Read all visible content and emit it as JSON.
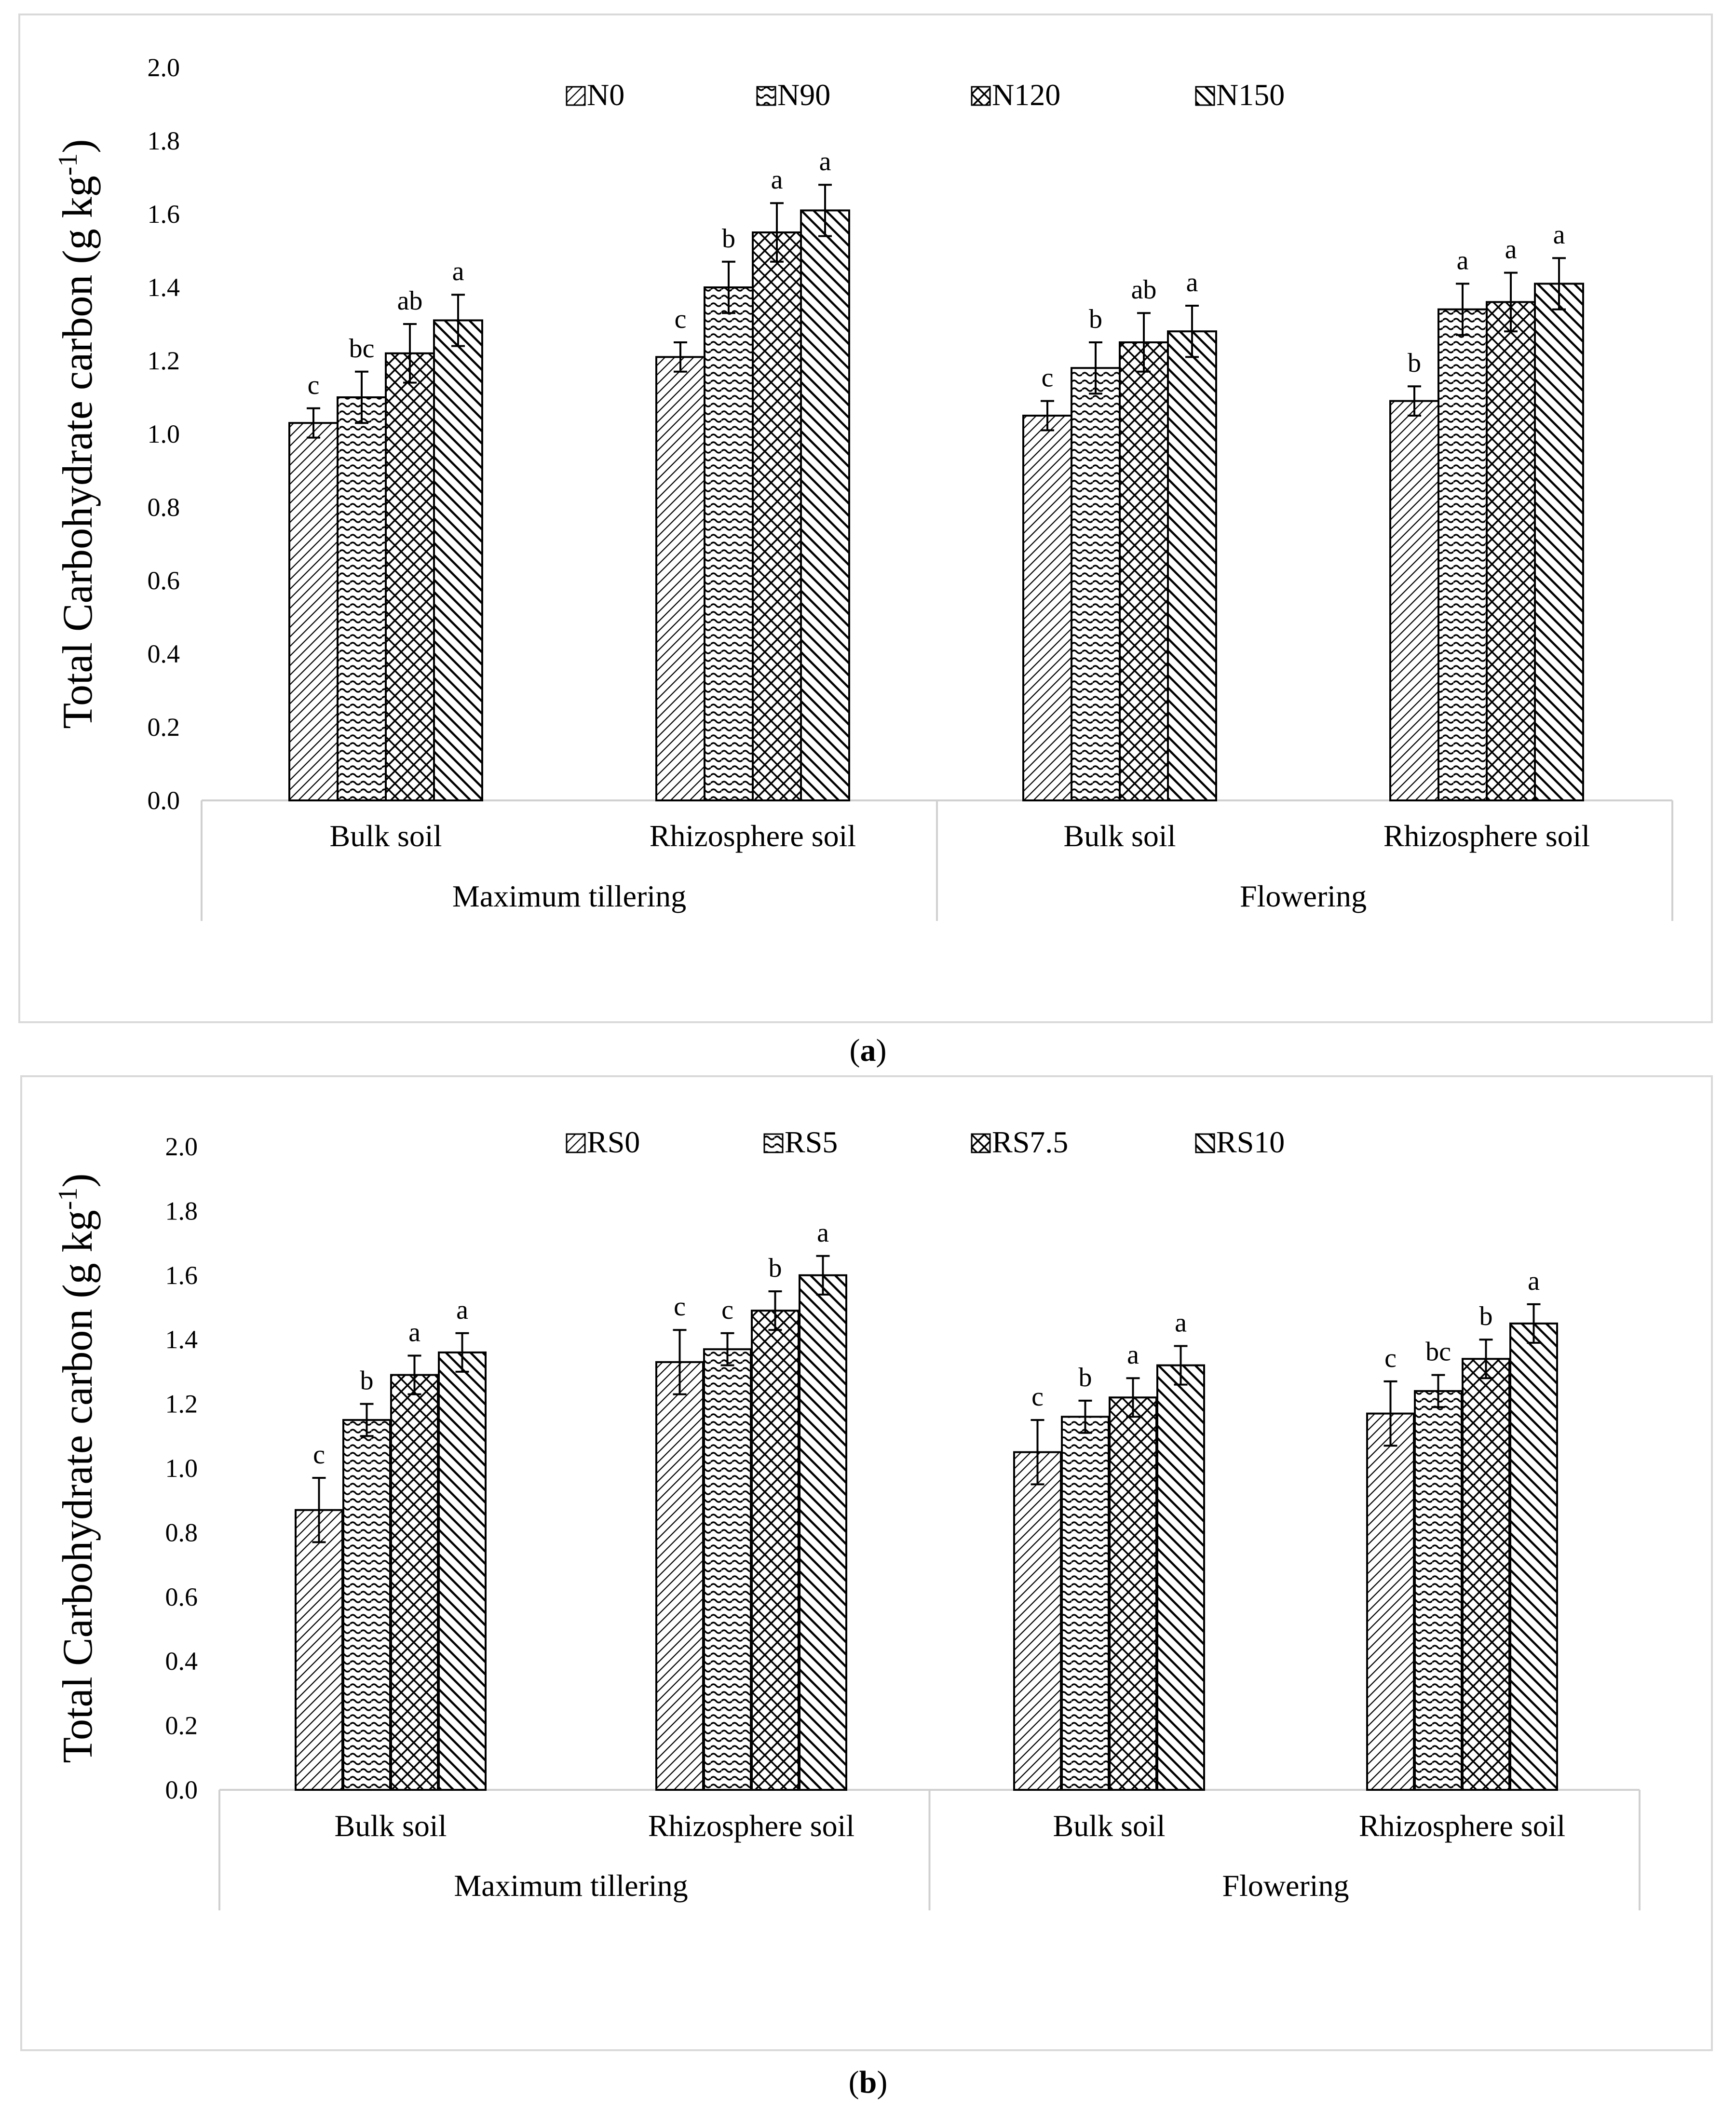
{
  "chart_data": [
    {
      "type": "bar",
      "panel_label": "a",
      "ylabel": "Total Carbohydrate carbon (g kg-1)",
      "ylabel_main": "Total Carbohydrate carbon (g kg",
      "ylabel_sup": "-1",
      "ylabel_end": ")",
      "ylim": [
        0,
        2.0
      ],
      "yticks": [
        "0.0",
        "0.2",
        "0.4",
        "0.6",
        "0.8",
        "1.0",
        "1.2",
        "1.4",
        "1.6",
        "1.8",
        "2.0"
      ],
      "categories": [
        "Bulk soil",
        "Rhizosphere soil",
        "Bulk soil",
        "Rhizosphere soil"
      ],
      "groups": [
        {
          "label": "Maximum tillering",
          "span": 2
        },
        {
          "label": "Flowering",
          "span": 2
        }
      ],
      "legend_position": "top",
      "grid": false,
      "series": [
        {
          "name": "N0",
          "pattern": "diag-thin",
          "values": [
            1.03,
            1.21,
            1.05,
            1.09
          ],
          "errors": [
            0.04,
            0.04,
            0.04,
            0.04
          ],
          "letters": [
            "c",
            "c",
            "c",
            "b"
          ]
        },
        {
          "name": "N90",
          "pattern": "wave",
          "values": [
            1.1,
            1.4,
            1.18,
            1.34
          ],
          "errors": [
            0.07,
            0.07,
            0.07,
            0.07
          ],
          "letters": [
            "bc",
            "b",
            "b",
            "a"
          ]
        },
        {
          "name": "N120",
          "pattern": "crosshatch",
          "values": [
            1.22,
            1.55,
            1.25,
            1.36
          ],
          "errors": [
            0.08,
            0.08,
            0.08,
            0.08
          ],
          "letters": [
            "ab",
            "a",
            "ab",
            "a"
          ]
        },
        {
          "name": "N150",
          "pattern": "diag-thick",
          "values": [
            1.31,
            1.61,
            1.28,
            1.41
          ],
          "errors": [
            0.07,
            0.07,
            0.07,
            0.07
          ],
          "letters": [
            "a",
            "a",
            "a",
            "a"
          ]
        }
      ]
    },
    {
      "type": "bar",
      "panel_label": "b",
      "ylabel": "Total Carbohydrate carbon (g kg-1)",
      "ylabel_main": "Total Carbohydrate carbon (g kg",
      "ylabel_sup": "-1",
      "ylabel_end": ")",
      "ylim": [
        0,
        2.0
      ],
      "yticks": [
        "0.0",
        "0.2",
        "0.4",
        "0.6",
        "0.8",
        "1.0",
        "1.2",
        "1.4",
        "1.6",
        "1.8",
        "2.0"
      ],
      "categories": [
        "Bulk soil",
        "Rhizosphere soil",
        "Bulk soil",
        "Rhizosphere soil"
      ],
      "groups": [
        {
          "label": "Maximum tillering",
          "span": 2
        },
        {
          "label": "Flowering",
          "span": 2
        }
      ],
      "legend_position": "top",
      "grid": false,
      "series": [
        {
          "name": "RS0",
          "pattern": "diag-thin",
          "values": [
            0.87,
            1.33,
            1.05,
            1.17
          ],
          "errors": [
            0.1,
            0.1,
            0.1,
            0.1
          ],
          "letters": [
            "c",
            "c",
            "c",
            "c"
          ]
        },
        {
          "name": "RS5",
          "pattern": "wave",
          "values": [
            1.15,
            1.37,
            1.16,
            1.24
          ],
          "errors": [
            0.05,
            0.05,
            0.05,
            0.05
          ],
          "letters": [
            "b",
            "c",
            "b",
            "bc"
          ]
        },
        {
          "name": "RS7.5",
          "pattern": "crosshatch",
          "values": [
            1.29,
            1.49,
            1.22,
            1.34
          ],
          "errors": [
            0.06,
            0.06,
            0.06,
            0.06
          ],
          "letters": [
            "a",
            "b",
            "a",
            "b"
          ]
        },
        {
          "name": "RS10",
          "pattern": "diag-thick",
          "values": [
            1.36,
            1.6,
            1.32,
            1.45
          ],
          "errors": [
            0.06,
            0.06,
            0.06,
            0.06
          ],
          "letters": [
            "a",
            "a",
            "a",
            "a"
          ]
        }
      ]
    }
  ]
}
